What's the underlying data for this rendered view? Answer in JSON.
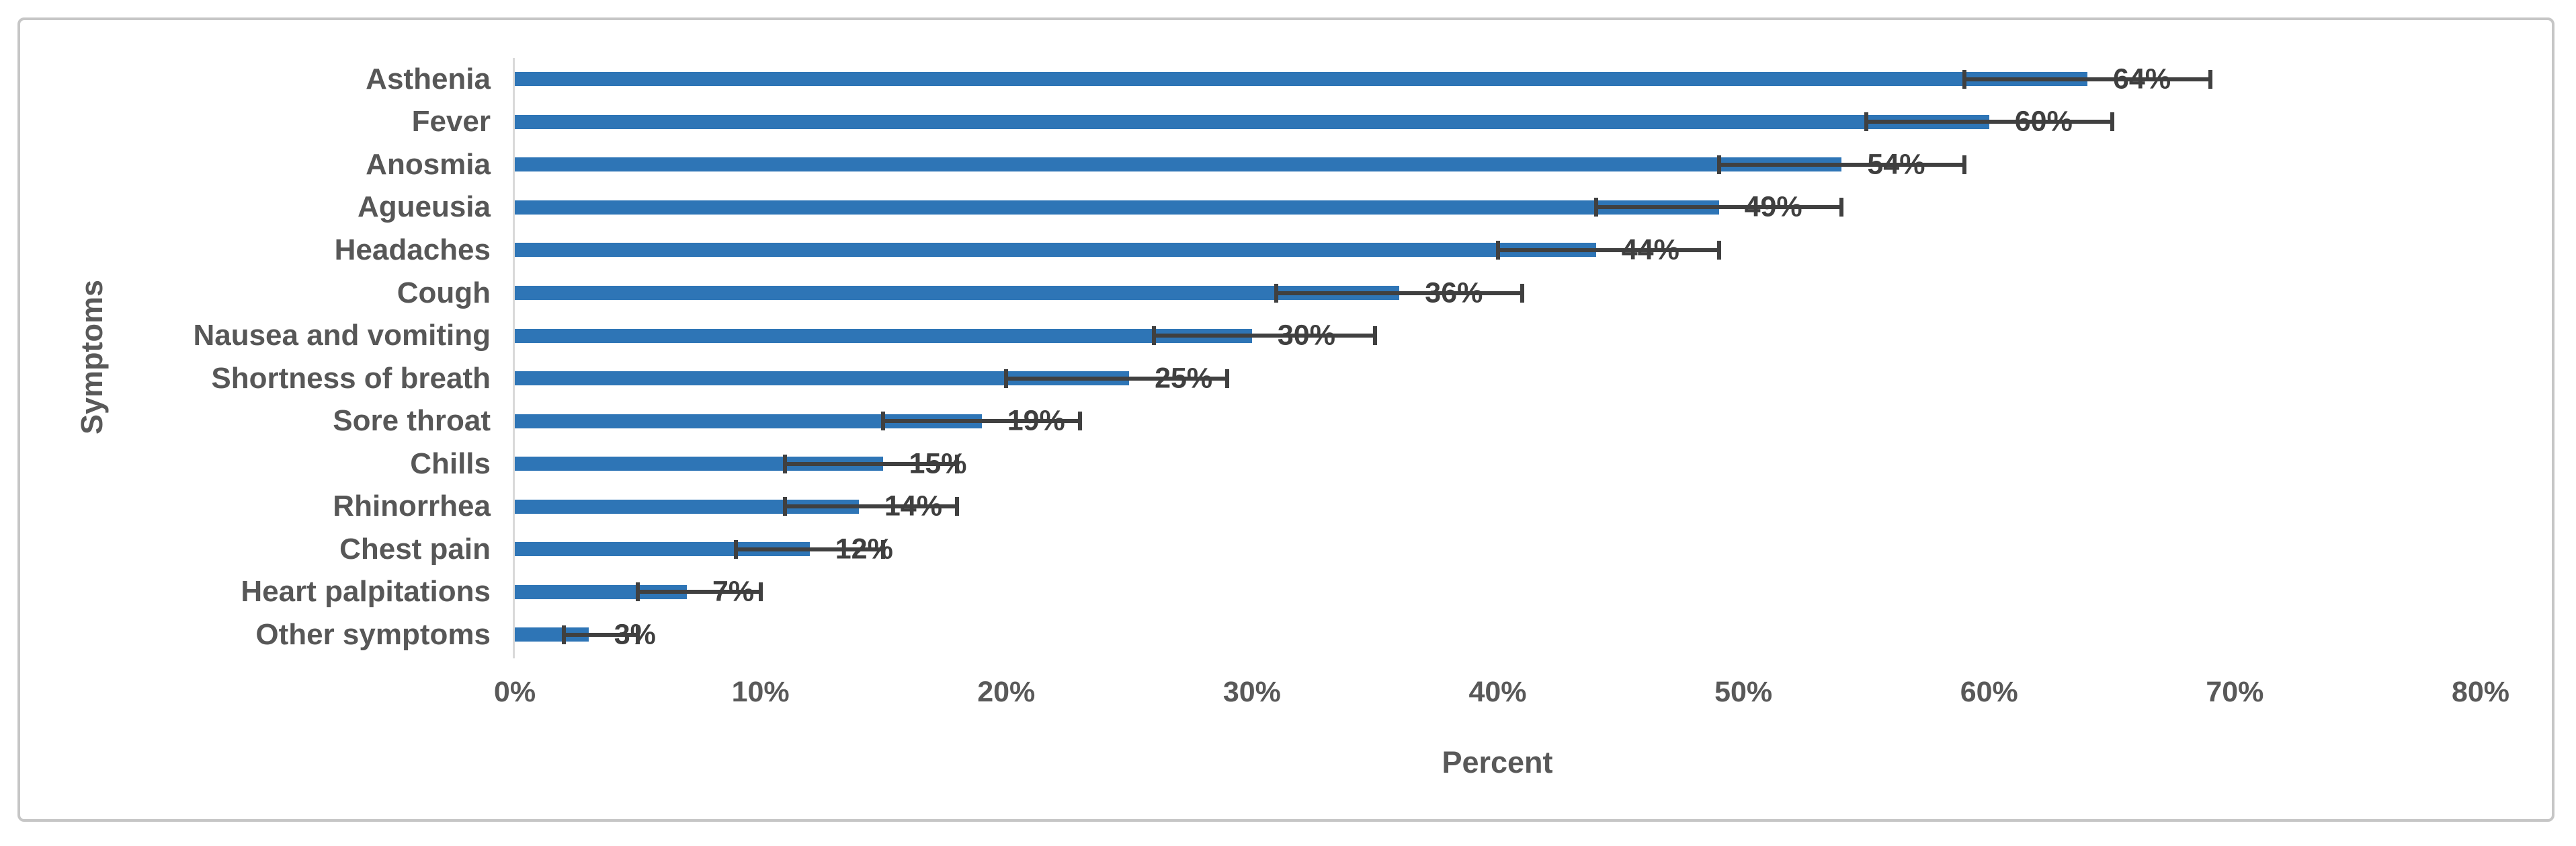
{
  "chart_data": {
    "type": "bar",
    "orientation": "horizontal",
    "title": "",
    "xlabel": "Percent",
    "ylabel": "Symptoms",
    "xlim": [
      0,
      80
    ],
    "x_tick_labels": [
      "0%",
      "10%",
      "20%",
      "30%",
      "40%",
      "50%",
      "60%",
      "70%",
      "80%"
    ],
    "x_tick_values": [
      0,
      10,
      20,
      30,
      40,
      50,
      60,
      70,
      80
    ],
    "grid": false,
    "legend": null,
    "bar_color": "#2e75b6",
    "error_bar_color": "#404040",
    "axis_line_color": "#d9d9d9",
    "text_color": "#595959",
    "rows": [
      {
        "category": "Asthenia",
        "value": 64,
        "label": "64%",
        "err_low": 59,
        "err_high": 69
      },
      {
        "category": "Fever",
        "value": 60,
        "label": "60%",
        "err_low": 55,
        "err_high": 65
      },
      {
        "category": "Anosmia",
        "value": 54,
        "label": "54%",
        "err_low": 49,
        "err_high": 59
      },
      {
        "category": "Agueusia",
        "value": 49,
        "label": "49%",
        "err_low": 44,
        "err_high": 54
      },
      {
        "category": "Headaches",
        "value": 44,
        "label": "44%",
        "err_low": 40,
        "err_high": 49
      },
      {
        "category": "Cough",
        "value": 36,
        "label": "36%",
        "err_low": 31,
        "err_high": 41
      },
      {
        "category": "Nausea and vomiting",
        "value": 30,
        "label": "30%",
        "err_low": 26,
        "err_high": 35
      },
      {
        "category": "Shortness of breath",
        "value": 25,
        "label": "25%",
        "err_low": 20,
        "err_high": 29
      },
      {
        "category": "Sore throat",
        "value": 19,
        "label": "19%",
        "err_low": 15,
        "err_high": 23
      },
      {
        "category": "Chills",
        "value": 15,
        "label": "15%",
        "err_low": 11,
        "err_high": 18
      },
      {
        "category": "Rhinorrhea",
        "value": 14,
        "label": "14%",
        "err_low": 11,
        "err_high": 18
      },
      {
        "category": "Chest pain",
        "value": 12,
        "label": "12%",
        "err_low": 9,
        "err_high": 15
      },
      {
        "category": "Heart palpitations",
        "value": 7,
        "label": "7%",
        "err_low": 5,
        "err_high": 10
      },
      {
        "category": "Other symptoms",
        "value": 3,
        "label": "3%",
        "err_low": 2,
        "err_high": 5
      }
    ]
  }
}
